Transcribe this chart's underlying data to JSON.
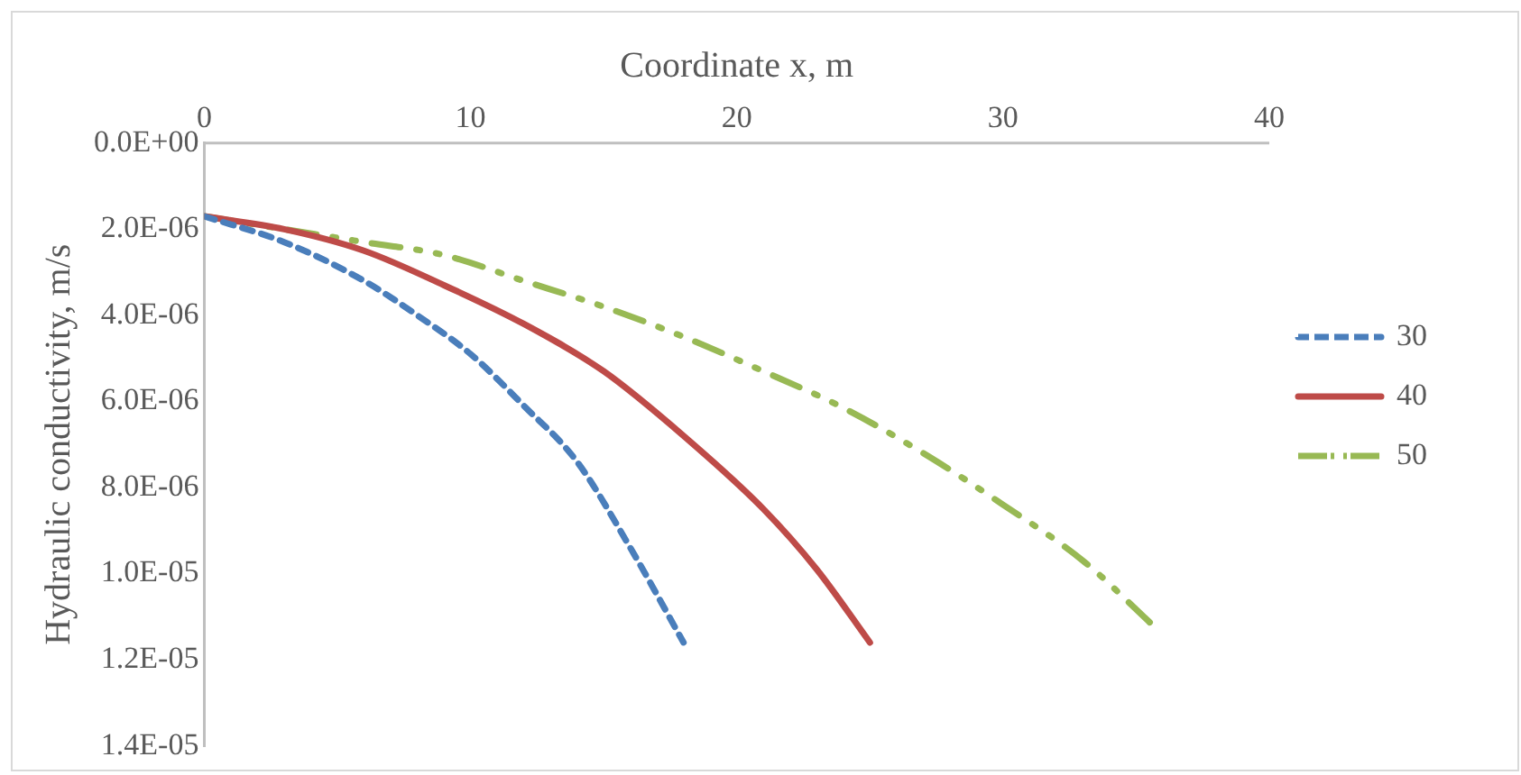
{
  "chart_data": {
    "type": "line",
    "xlabel": "Coordinate x, m",
    "ylabel": "Hydraulic conductivity, m/s",
    "xlim": [
      0,
      40
    ],
    "xticks": [
      0,
      10,
      20,
      30,
      40
    ],
    "ylim": [
      1.4e-05,
      0
    ],
    "yticks": [
      {
        "value": 0,
        "label": "0.0E+00"
      },
      {
        "value": 2e-06,
        "label": "2.0E-06"
      },
      {
        "value": 4e-06,
        "label": "4.0E-06"
      },
      {
        "value": 6e-06,
        "label": "6.0E-06"
      },
      {
        "value": 8e-06,
        "label": "8.0E-06"
      },
      {
        "value": 1e-05,
        "label": "1.0E-05"
      },
      {
        "value": 1.2e-05,
        "label": "1.2E-05"
      },
      {
        "value": 1.4e-05,
        "label": "1.4E-05"
      }
    ],
    "grid": false,
    "legend": "right",
    "marker": "none",
    "series": [
      {
        "name": "30",
        "color": "#4a7ebb",
        "line_style": "dashed",
        "x": [
          0,
          3,
          6,
          8,
          10,
          12,
          14,
          16,
          18
        ],
        "values": [
          1.7e-06,
          2.3e-06,
          3.2e-06,
          4e-06,
          4.9e-06,
          6.1e-06,
          7.4e-06,
          9.4e-06,
          1.16e-05
        ]
      },
      {
        "name": "40",
        "color": "#be4b48",
        "line_style": "solid",
        "x": [
          0,
          3,
          6,
          9,
          12,
          15,
          18,
          21,
          23,
          25
        ],
        "values": [
          1.7e-06,
          2e-06,
          2.5e-06,
          3.3e-06,
          4.2e-06,
          5.3e-06,
          6.8e-06,
          8.5e-06,
          9.9e-06,
          1.16e-05
        ]
      },
      {
        "name": "50",
        "color": "#98b954",
        "line_style": "dashdotdot",
        "x": [
          0,
          3,
          6,
          9,
          12,
          15,
          18,
          21,
          24,
          27,
          30,
          33,
          35.8
        ],
        "values": [
          1.7e-06,
          2e-06,
          2.3e-06,
          2.6e-06,
          3.2e-06,
          3.8e-06,
          4.5e-06,
          5.3e-06,
          6.15e-06,
          7.2e-06,
          8.4e-06,
          9.7e-06,
          1.13e-05
        ]
      }
    ]
  }
}
